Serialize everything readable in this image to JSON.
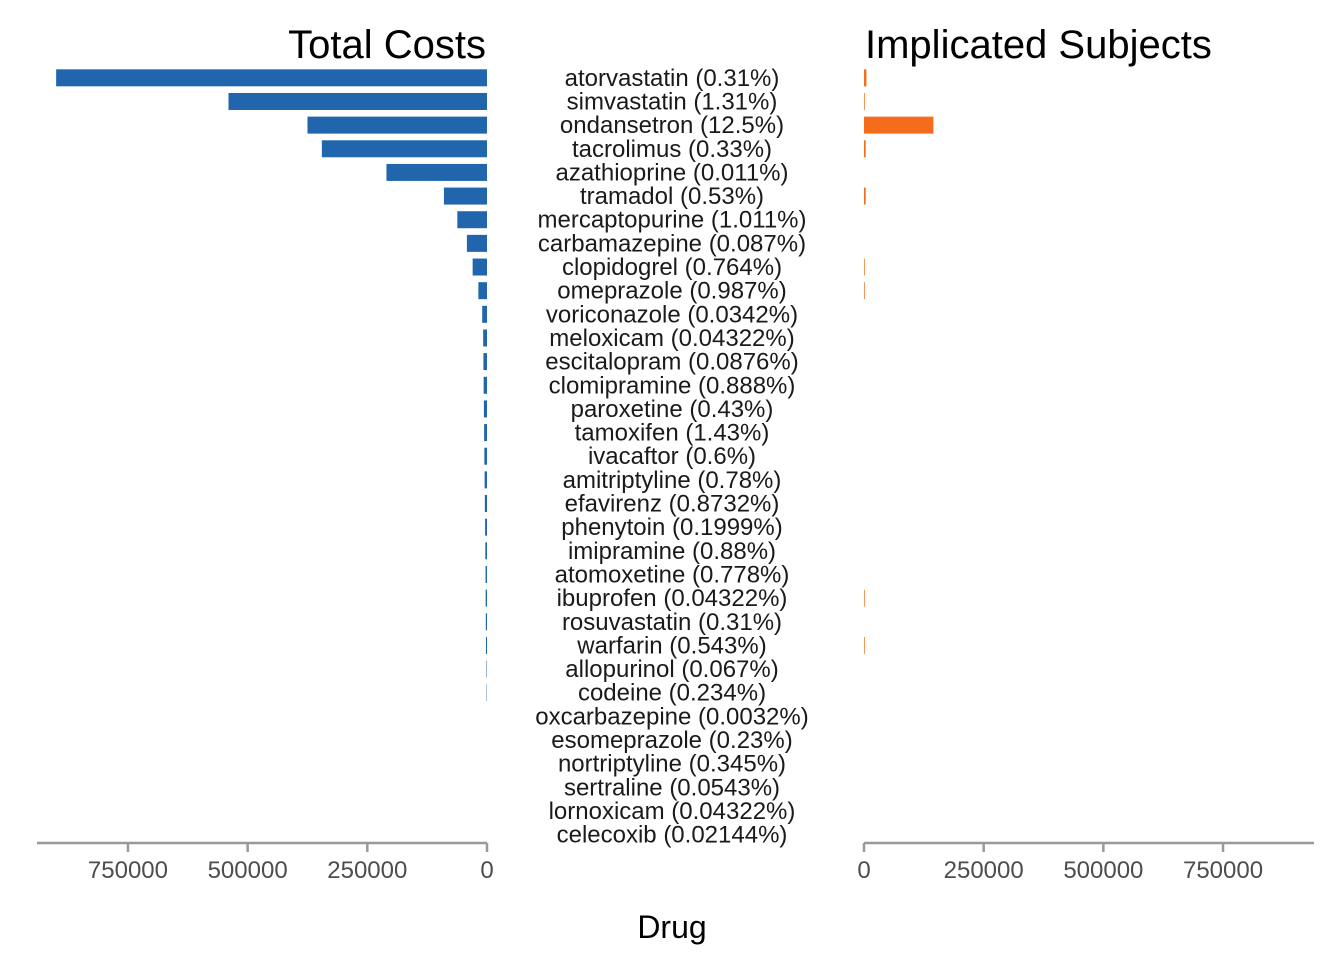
{
  "chart_data": {
    "type": "bar",
    "orientation": "horizontal-back-to-back",
    "xlabel": "Drug",
    "colors": {
      "left": "#2166ac",
      "right": "#f46d1b"
    },
    "categories": [
      "atorvastatin (0.31%)",
      "simvastatin (1.31%)",
      "ondansetron (12.5%)",
      "tacrolimus (0.33%)",
      "azathioprine (0.011%)",
      "tramadol (0.53%)",
      "mercaptopurine (1.011%)",
      "carbamazepine (0.087%)",
      "clopidogrel (0.764%)",
      "omeprazole (0.987%)",
      "voriconazole (0.0342%)",
      "meloxicam (0.04322%)",
      "escitalopram (0.0876%)",
      "clomipramine (0.888%)",
      "paroxetine (0.43%)",
      "tamoxifen (1.43%)",
      "ivacaftor (0.6%)",
      "amitriptyline (0.78%)",
      "efavirenz (0.8732%)",
      "phenytoin (0.1999%)",
      "imipramine (0.88%)",
      "atomoxetine (0.778%)",
      "ibuprofen (0.04322%)",
      "rosuvastatin (0.31%)",
      "warfarin (0.543%)",
      "allopurinol (0.067%)",
      "codeine (0.234%)",
      "oxcarbazepine (0.0032%)",
      "esomeprazole (0.23%)",
      "nortriptyline (0.345%)",
      "sertraline (0.0543%)",
      "lornoxicam (0.04322%)",
      "celecoxib (0.02144%)"
    ],
    "series": [
      {
        "name": "Total Costs",
        "values": [
          900000,
          540000,
          375000,
          345000,
          210000,
          90000,
          62000,
          42000,
          30000,
          18000,
          10000,
          8000,
          7500,
          7000,
          6500,
          6000,
          5500,
          5000,
          4500,
          4000,
          3500,
          3000,
          2800,
          2500,
          2200,
          1000,
          800,
          0,
          0,
          0,
          0,
          0,
          0
        ]
      },
      {
        "name": "Implicated Subjects",
        "values": [
          5000,
          1500,
          145000,
          3500,
          0,
          3500,
          0,
          0,
          1500,
          1500,
          0,
          0,
          0,
          0,
          0,
          0,
          0,
          0,
          0,
          0,
          0,
          0,
          1500,
          0,
          1500,
          0,
          0,
          0,
          0,
          0,
          0,
          0,
          0
        ]
      }
    ],
    "left_axis": {
      "ticks": [
        750000,
        500000,
        250000,
        0
      ],
      "xlim": [
        0,
        940000
      ],
      "reversed": true
    },
    "right_axis": {
      "ticks": [
        0,
        250000,
        500000,
        750000
      ],
      "xlim": [
        0,
        940000
      ]
    }
  }
}
